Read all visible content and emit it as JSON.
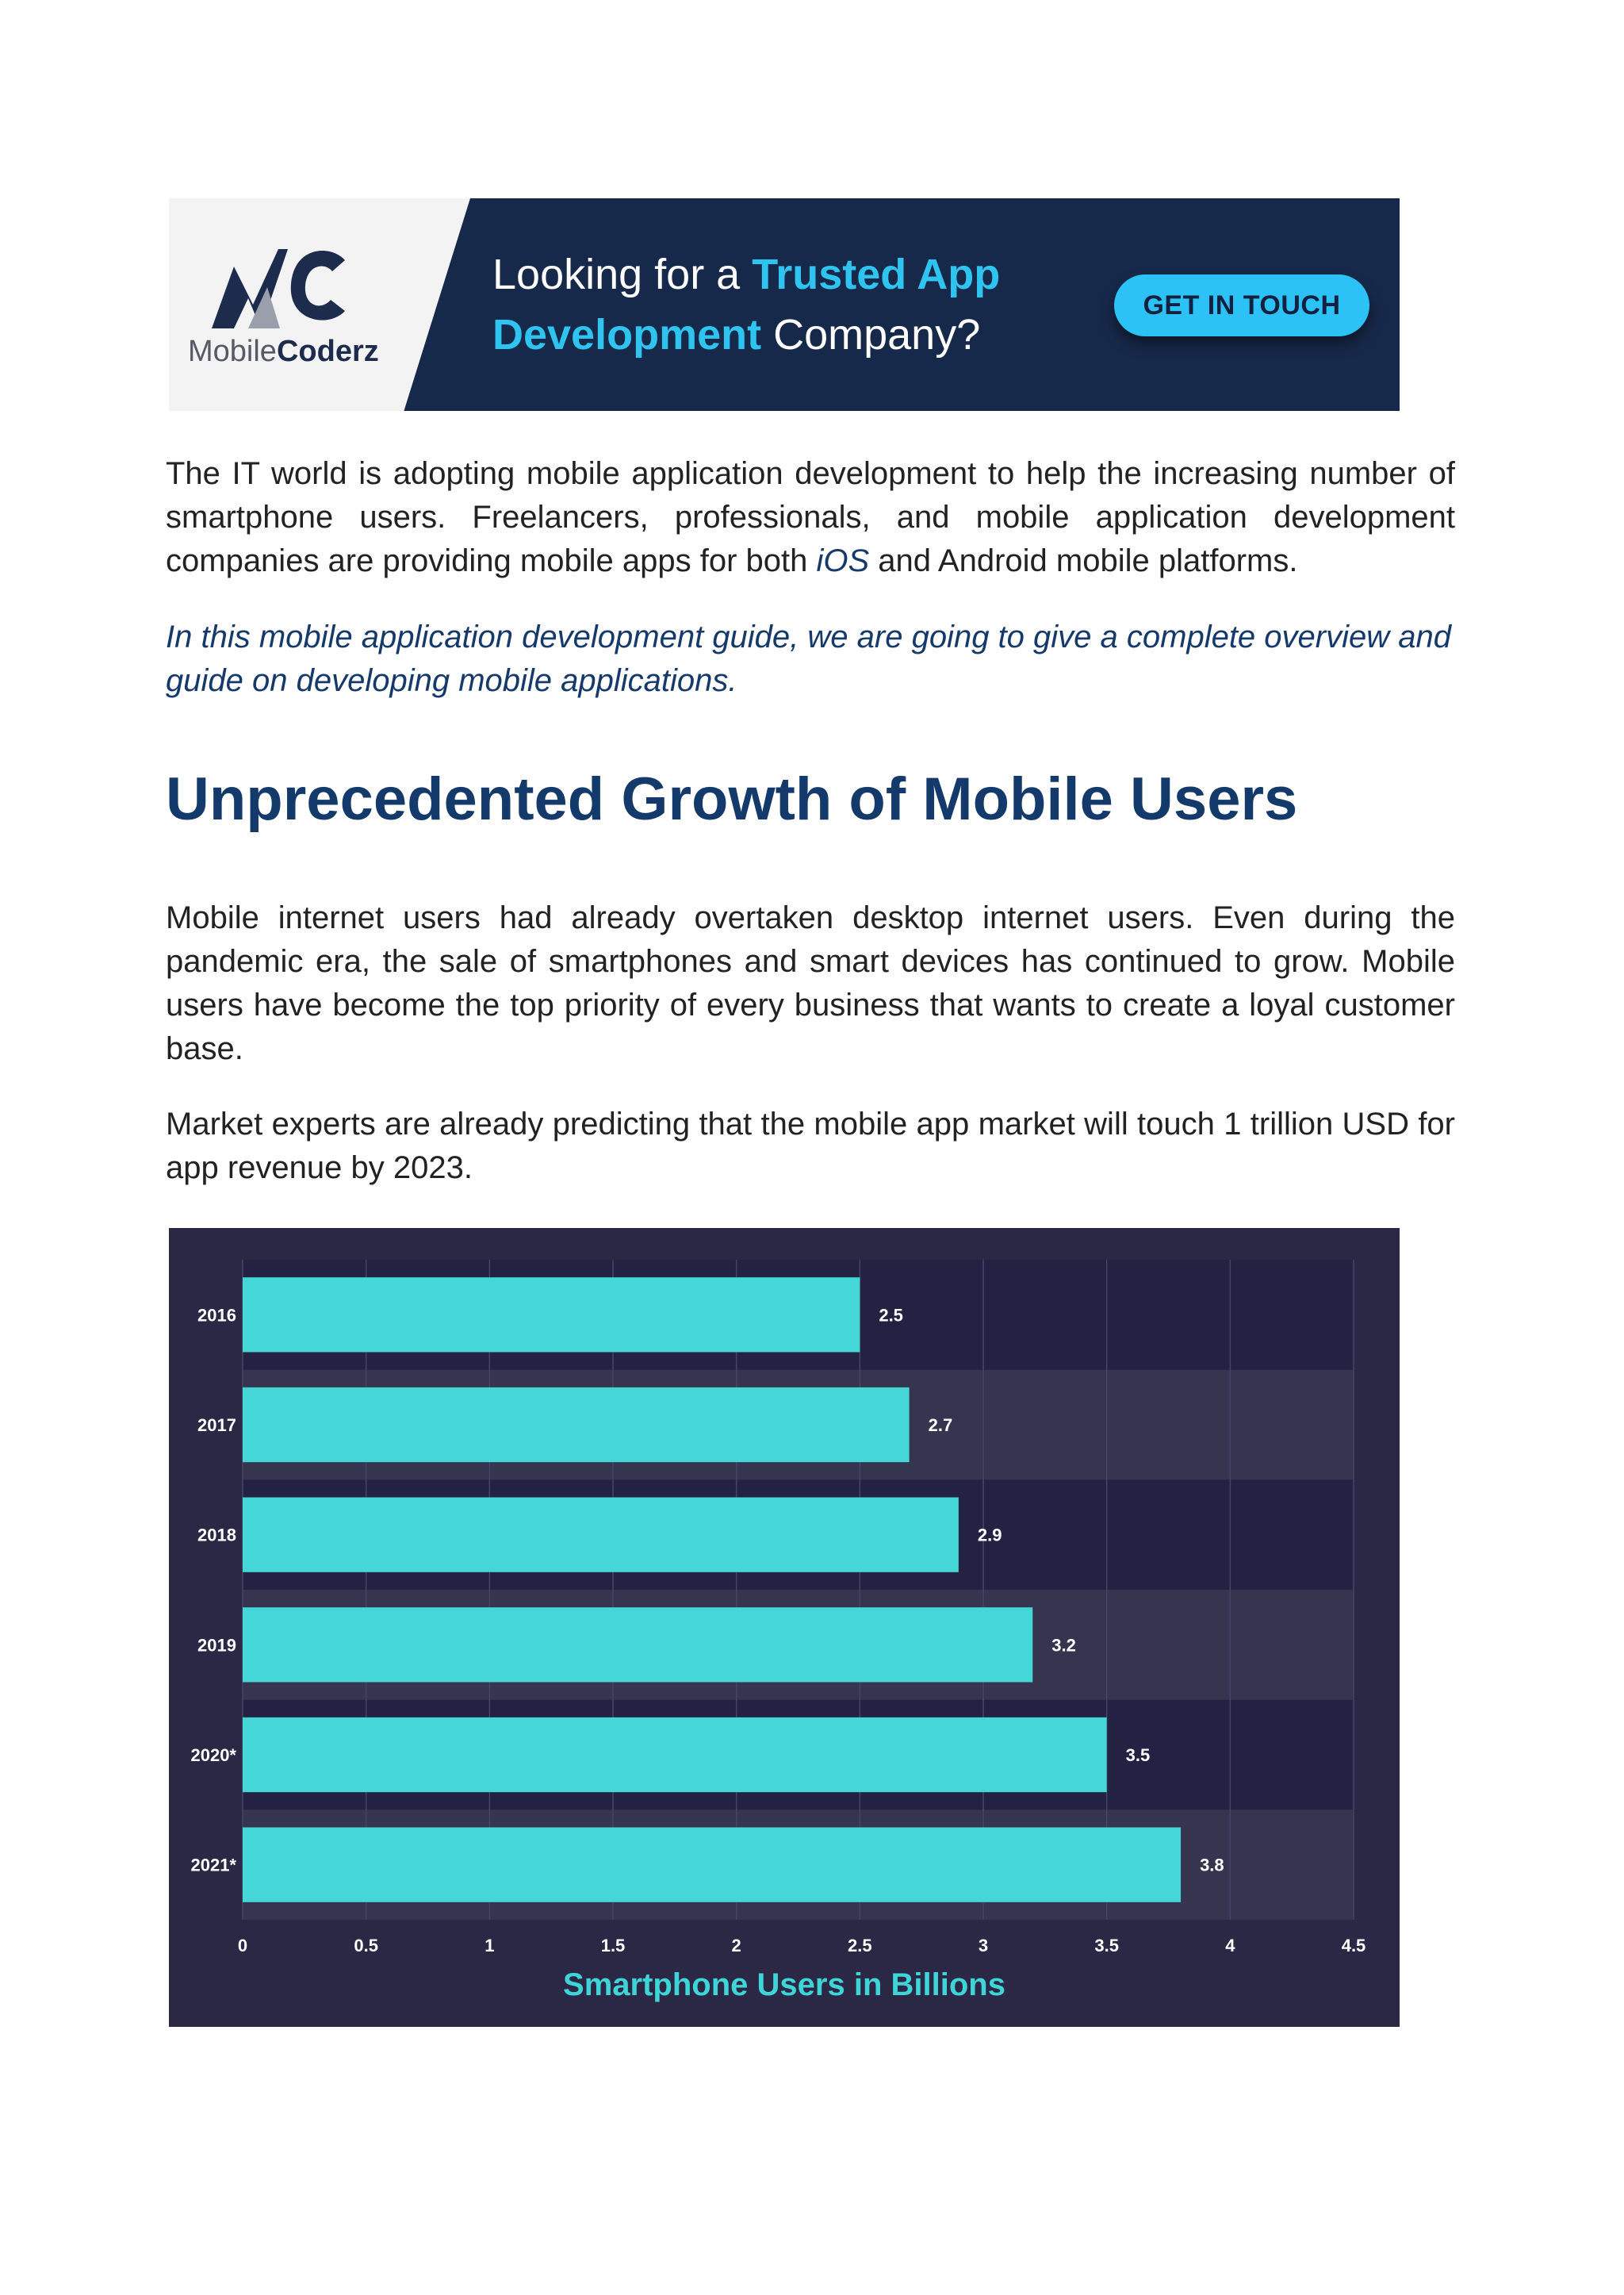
{
  "banner": {
    "logo_text_light": "Mobile",
    "logo_text_bold": "Coderz",
    "headline_part1": "Looking for a ",
    "headline_highlight1": "Trusted App",
    "headline_highlight2": "Development",
    "headline_part2": " Company?",
    "cta_label": "GET IN TOUCH",
    "colors": {
      "background": "#17294a",
      "accent": "#2fc4f0"
    },
    "logo_icon": "mc-logo-icon"
  },
  "intro": {
    "p1_before": "The IT world is adopting mobile application development to help the increasing number of smartphone users. Freelancers, professionals, and mobile application development companies are providing mobile apps for both ",
    "p1_link": "iOS",
    "p1_after": " and Android mobile platforms.",
    "p2": "In this mobile application development guide, we are going to give a complete overview and guide on developing mobile applications."
  },
  "section": {
    "heading": "Unprecedented Growth of Mobile Users",
    "p1": "Mobile internet users had already overtaken desktop internet users. Even during the pandemic era, the sale of smartphones and smart devices has continued to grow. Mobile users have become the top priority of every business that wants to create a loyal customer base.",
    "p2": "Market experts are already predicting that the mobile app market will touch 1 trillion USD for app revenue by 2023."
  },
  "chart_data": {
    "type": "bar",
    "orientation": "horizontal",
    "categories": [
      "2016",
      "2017",
      "2018",
      "2019",
      "2020*",
      "2021*"
    ],
    "values": [
      2.5,
      2.7,
      2.9,
      3.2,
      3.5,
      3.8
    ],
    "value_labels": [
      "2.5",
      "2.7",
      "2.9",
      "3.2",
      "3.5",
      "3.8"
    ],
    "xlim": [
      0,
      4.5
    ],
    "xticks": [
      "0",
      "0.5",
      "1",
      "1.5",
      "2",
      "2.5",
      "3",
      "3.5",
      "4",
      "4.5"
    ],
    "xlabel": "Smartphone Users in Billions",
    "grid": true,
    "colors": {
      "bar": "#45d6d7",
      "background": "#2b2845",
      "label": "#3fd5d8"
    }
  }
}
